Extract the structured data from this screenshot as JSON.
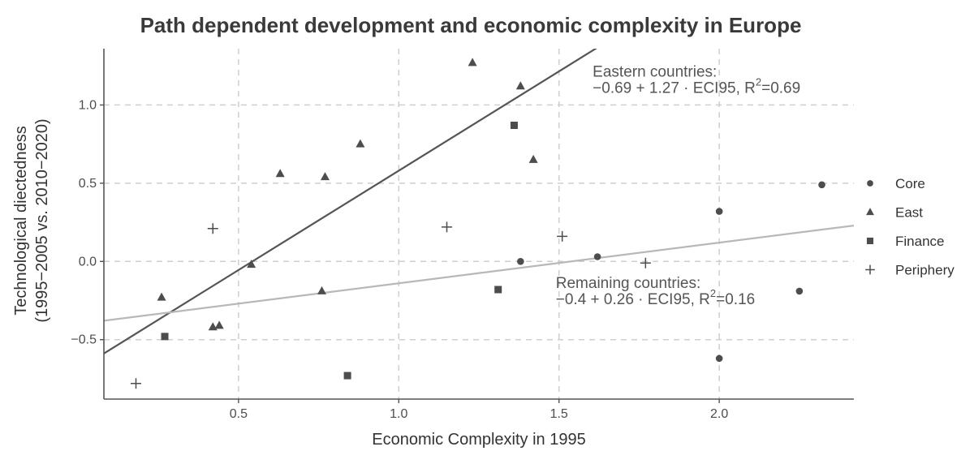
{
  "chart_data": {
    "type": "scatter",
    "title": "Path dependent development and economic complexity in Europe",
    "xlabel": "Economic Complexity in 1995",
    "ylabel": [
      "Technological diectedness",
      "(1995−2005 vs. 2010−2020)"
    ],
    "xlim": [
      0.08,
      2.42
    ],
    "ylim": [
      -0.88,
      1.36
    ],
    "xticks": [
      0.5,
      1.0,
      1.5,
      2.0
    ],
    "xtick_labels": [
      "0.5",
      "1.0",
      "1.5",
      "2.0"
    ],
    "yticks": [
      -0.5,
      0.0,
      0.5,
      1.0
    ],
    "ytick_labels": [
      "−0.5",
      "0.0",
      "0.5",
      "1.0"
    ],
    "grid": true,
    "legend_position": "right",
    "series": [
      {
        "name": "Core",
        "marker": "circle",
        "color": "#4d4d4d",
        "points": [
          {
            "x": 1.38,
            "y": 0.0
          },
          {
            "x": 1.62,
            "y": 0.03
          },
          {
            "x": 2.0,
            "y": 0.32
          },
          {
            "x": 2.32,
            "y": 0.49
          },
          {
            "x": 2.25,
            "y": -0.19
          },
          {
            "x": 2.0,
            "y": -0.62
          }
        ]
      },
      {
        "name": "East",
        "marker": "triangle",
        "color": "#4d4d4d",
        "points": [
          {
            "x": 0.26,
            "y": -0.23
          },
          {
            "x": 0.42,
            "y": -0.42
          },
          {
            "x": 0.44,
            "y": -0.41
          },
          {
            "x": 0.54,
            "y": -0.02
          },
          {
            "x": 0.63,
            "y": 0.56
          },
          {
            "x": 0.77,
            "y": 0.54
          },
          {
            "x": 0.88,
            "y": 0.75
          },
          {
            "x": 0.76,
            "y": -0.19
          },
          {
            "x": 1.23,
            "y": 1.27
          },
          {
            "x": 1.38,
            "y": 1.12
          },
          {
            "x": 1.42,
            "y": 0.65
          }
        ]
      },
      {
        "name": "Finance",
        "marker": "square",
        "color": "#4d4d4d",
        "points": [
          {
            "x": 0.27,
            "y": -0.48
          },
          {
            "x": 0.84,
            "y": -0.73
          },
          {
            "x": 1.31,
            "y": -0.18
          },
          {
            "x": 1.36,
            "y": 0.87
          }
        ]
      },
      {
        "name": "Periphery",
        "marker": "plus",
        "color": "#4d4d4d",
        "points": [
          {
            "x": 0.18,
            "y": -0.78
          },
          {
            "x": 0.42,
            "y": 0.21
          },
          {
            "x": 1.15,
            "y": 0.22
          },
          {
            "x": 1.51,
            "y": 0.16
          },
          {
            "x": 1.77,
            "y": -0.01
          }
        ]
      }
    ],
    "fit_lines": [
      {
        "intercept": -0.69,
        "slope": 1.27,
        "color": "#555555"
      },
      {
        "intercept": -0.4,
        "slope": 0.26,
        "color": "#b8b8b8"
      }
    ],
    "annotations": [
      {
        "line1": "Eastern countries:",
        "line2": "−0.69 + 1.27 · ECI95, R",
        "sup": "2",
        "tail": "=0.69",
        "anchor_x": 1.605,
        "anchor_y": 1.18
      },
      {
        "line1": "Remaining countries:",
        "line2": "−0.4 + 0.26 · ECI95, R",
        "sup": "2",
        "tail": "=0.16",
        "anchor_x": 1.49,
        "anchor_y": -0.17
      }
    ]
  }
}
